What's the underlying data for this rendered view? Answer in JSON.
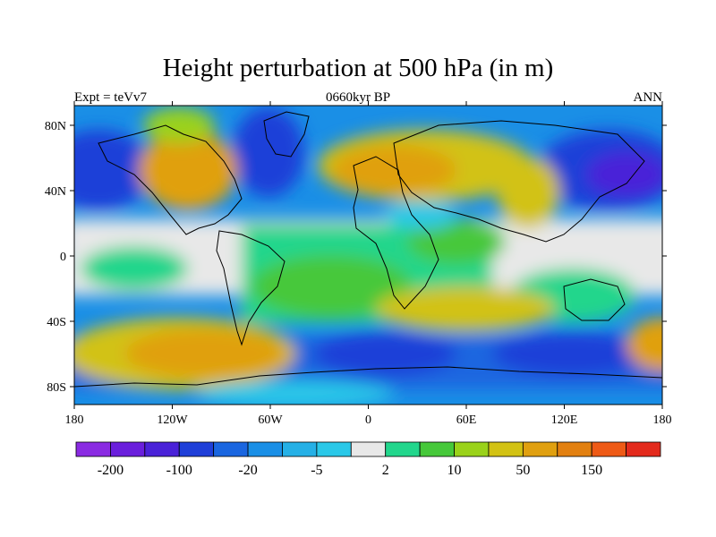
{
  "title": "Height perturbation at 500 hPa (in m)",
  "left_string": "Expt = teVv7",
  "center_string": "0660kyr BP",
  "right_string": "ANN",
  "lat_ticks": [
    "80N",
    "40N",
    "0",
    "40S",
    "80S"
  ],
  "lon_ticks": [
    "180",
    "120W",
    "60W",
    "0",
    "60E",
    "120E",
    "180"
  ],
  "colorbar": {
    "colors": [
      "#8a2be2",
      "#6a1fdc",
      "#4a22d8",
      "#1f3fd8",
      "#1a66e0",
      "#1a8fe6",
      "#25b0e6",
      "#2ac8e8",
      "#e8e8e8",
      "#22d68c",
      "#46c83a",
      "#9ad21a",
      "#d2c214",
      "#e0a010",
      "#e28010",
      "#ee5a16",
      "#e32a1c"
    ],
    "labels": [
      "-200",
      "-100",
      "-20",
      "-5",
      "2",
      "10",
      "50",
      "150"
    ]
  }
}
